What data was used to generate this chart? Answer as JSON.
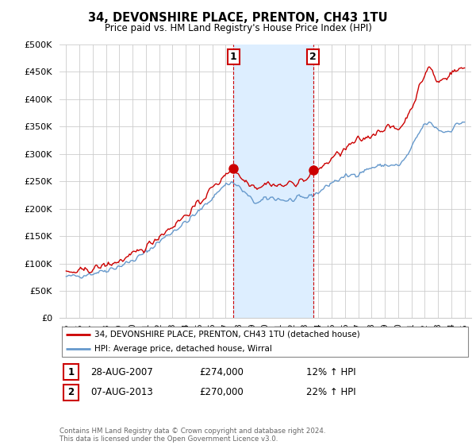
{
  "title": "34, DEVONSHIRE PLACE, PRENTON, CH43 1TU",
  "subtitle": "Price paid vs. HM Land Registry's House Price Index (HPI)",
  "legend_line1": "34, DEVONSHIRE PLACE, PRENTON, CH43 1TU (detached house)",
  "legend_line2": "HPI: Average price, detached house, Wirral",
  "annotation1_label": "1",
  "annotation1_date": "28-AUG-2007",
  "annotation1_price": "£274,000",
  "annotation1_hpi": "12% ↑ HPI",
  "annotation2_label": "2",
  "annotation2_date": "07-AUG-2013",
  "annotation2_price": "£270,000",
  "annotation2_hpi": "22% ↑ HPI",
  "footer": "Contains HM Land Registry data © Crown copyright and database right 2024.\nThis data is licensed under the Open Government Licence v3.0.",
  "red_color": "#cc0000",
  "blue_color": "#6699cc",
  "shaded_color": "#ddeeff",
  "annotation_box_color": "#cc0000",
  "grid_color": "#cccccc",
  "ylim_min": 0,
  "ylim_max": 500000,
  "yticks": [
    0,
    50000,
    100000,
    150000,
    200000,
    250000,
    300000,
    350000,
    400000,
    450000,
    500000
  ],
  "year_start": 1995,
  "year_end": 2025,
  "sale1_year_float": 2007.6,
  "sale1_price": 274000,
  "sale2_year_float": 2013.6,
  "sale2_price": 270000,
  "hpi_breakpoints_x": [
    1995.0,
    1996.0,
    1997.0,
    1998.0,
    1999.0,
    2000.0,
    2001.0,
    2002.0,
    2003.0,
    2004.0,
    2005.0,
    2006.0,
    2007.0,
    2007.5,
    2008.0,
    2008.5,
    2009.0,
    2009.5,
    2010.0,
    2010.5,
    2011.0,
    2011.5,
    2012.0,
    2012.5,
    2013.0,
    2013.5,
    2014.0,
    2015.0,
    2016.0,
    2017.0,
    2018.0,
    2019.0,
    2020.0,
    2020.5,
    2021.0,
    2021.5,
    2022.0,
    2022.5,
    2023.0,
    2023.5,
    2024.0,
    2024.5,
    2025.0
  ],
  "hpi_breakpoints_y": [
    75000,
    78000,
    82000,
    88000,
    95000,
    105000,
    120000,
    140000,
    158000,
    175000,
    195000,
    220000,
    245000,
    248000,
    240000,
    228000,
    215000,
    210000,
    218000,
    220000,
    218000,
    215000,
    215000,
    218000,
    220000,
    225000,
    230000,
    248000,
    258000,
    265000,
    275000,
    280000,
    278000,
    290000,
    310000,
    335000,
    355000,
    355000,
    345000,
    340000,
    345000,
    355000,
    360000
  ],
  "red_breakpoints_x": [
    1995.0,
    1996.0,
    1997.0,
    1998.0,
    1999.0,
    2000.0,
    2001.0,
    2002.0,
    2003.0,
    2004.0,
    2005.0,
    2006.0,
    2006.8,
    2007.0,
    2007.6,
    2007.8,
    2008.2,
    2008.8,
    2009.3,
    2009.8,
    2010.2,
    2010.8,
    2011.2,
    2011.8,
    2012.2,
    2012.8,
    2013.2,
    2013.6,
    2013.9,
    2014.5,
    2015.0,
    2015.5,
    2016.0,
    2016.5,
    2017.0,
    2017.5,
    2018.0,
    2018.5,
    2019.0,
    2019.5,
    2020.0,
    2020.5,
    2021.0,
    2021.5,
    2022.0,
    2022.3,
    2022.6,
    2022.9,
    2023.2,
    2023.5,
    2023.8,
    2024.1,
    2024.4,
    2024.7,
    2025.0
  ],
  "red_breakpoints_y": [
    82000,
    85000,
    90000,
    97000,
    104000,
    115000,
    130000,
    150000,
    168000,
    188000,
    210000,
    238000,
    255000,
    265000,
    274000,
    268000,
    255000,
    248000,
    240000,
    242000,
    248000,
    242000,
    242000,
    245000,
    248000,
    252000,
    255000,
    270000,
    272000,
    280000,
    292000,
    300000,
    308000,
    318000,
    325000,
    328000,
    335000,
    342000,
    348000,
    348000,
    345000,
    360000,
    385000,
    415000,
    445000,
    460000,
    450000,
    430000,
    435000,
    438000,
    445000,
    450000,
    452000,
    455000,
    458000
  ]
}
